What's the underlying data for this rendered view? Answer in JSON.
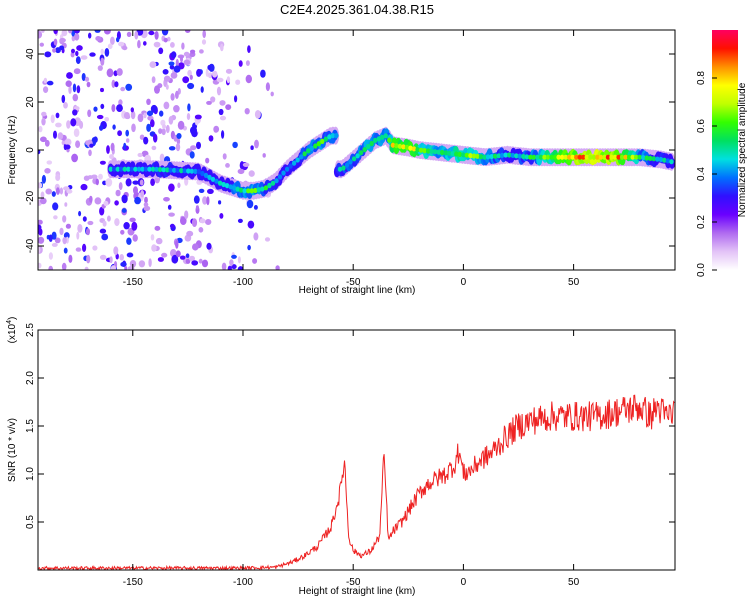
{
  "title": "C2E4.2025.361.04.38.R15",
  "chart_data": [
    {
      "type": "heatmap",
      "title": "C2E4.2025.361.04.38.R15",
      "xlabel": "Height of straight line (km)",
      "ylabel": "Frequency (Hz)",
      "xlim": [
        -193,
        96
      ],
      "ylim": [
        -50,
        50
      ],
      "xticks": [
        -150,
        -100,
        -50,
        0,
        50
      ],
      "yticks": [
        -40,
        -20,
        0,
        20,
        40
      ],
      "colorbar": {
        "label": "Normalized spectral amplitude",
        "range": [
          0.0,
          1.0
        ],
        "ticks": [
          0.0,
          0.2,
          0.4,
          0.6,
          0.8
        ],
        "colors": [
          "#ffffff",
          "#e3c3f7",
          "#b06bf0",
          "#6a00ff",
          "#3010ff",
          "#0070ff",
          "#00e0e0",
          "#00e060",
          "#33ff00",
          "#c0ff00",
          "#ffff00",
          "#ff9000",
          "#ff1000",
          "#ff0060"
        ]
      },
      "ridge": {
        "x": [
          -160,
          -140,
          -120,
          -110,
          -100,
          -95,
          -90,
          -85,
          -80,
          -75,
          -70,
          -65,
          -60,
          -55,
          -50,
          -45,
          -40,
          -35,
          -32,
          -25,
          -20,
          -10,
          0,
          10,
          20,
          30,
          40,
          50,
          60,
          70,
          80,
          90,
          95
        ],
        "y": [
          -8,
          -8,
          -9,
          -14,
          -17,
          -17,
          -16,
          -13,
          -8,
          -4,
          0,
          3,
          6,
          -8,
          -4,
          0,
          4,
          6,
          2,
          1,
          0,
          -1,
          -2,
          -3,
          -2,
          -3,
          -3,
          -3,
          -3,
          -3,
          -3,
          -4,
          -5
        ],
        "amplitude": [
          0.45,
          0.5,
          0.45,
          0.45,
          0.6,
          0.6,
          0.55,
          0.5,
          0.45,
          0.5,
          0.55,
          0.6,
          0.55,
          0.5,
          0.55,
          0.6,
          0.6,
          0.55,
          0.75,
          0.8,
          0.7,
          0.6,
          0.7,
          0.6,
          0.5,
          0.55,
          0.7,
          0.85,
          0.9,
          0.85,
          0.6,
          0.5,
          0.45
        ]
      },
      "noise_region_x": [
        -193,
        -80
      ]
    },
    {
      "type": "line",
      "xlabel": "Height of straight line (km)",
      "ylabel": "SNR (10 * v/v)",
      "scale_label": "(x10",
      "scale_exponent": "4",
      "scale_suffix": ")",
      "xlim": [
        -193,
        96
      ],
      "ylim": [
        0,
        2.5
      ],
      "xticks": [
        -150,
        -100,
        -50,
        0,
        50
      ],
      "yticks": [
        0.5,
        1.0,
        1.5,
        2.0,
        2.5
      ],
      "series": [
        {
          "name": "SNR",
          "color": "#ee2222",
          "x": [
            -193,
            -150,
            -100,
            -85,
            -78,
            -72,
            -66,
            -60,
            -56,
            -54,
            -52,
            -50,
            -46,
            -42,
            -38,
            -36,
            -34,
            -32,
            -28,
            -24,
            -20,
            -16,
            -12,
            -8,
            -4,
            -2,
            0,
            4,
            8,
            12,
            16,
            20,
            25,
            30,
            40,
            50,
            60,
            70,
            80,
            85,
            88,
            92,
            96
          ],
          "y": [
            0.02,
            0.02,
            0.02,
            0.03,
            0.08,
            0.15,
            0.25,
            0.45,
            0.8,
            1.15,
            0.35,
            0.2,
            0.15,
            0.2,
            0.35,
            1.2,
            0.3,
            0.4,
            0.5,
            0.65,
            0.8,
            0.9,
            0.95,
            1.0,
            1.1,
            1.25,
            1.0,
            1.05,
            1.15,
            1.2,
            1.3,
            1.4,
            1.5,
            1.55,
            1.6,
            1.6,
            1.6,
            1.65,
            1.7,
            1.6,
            1.7,
            1.6,
            1.65
          ]
        }
      ]
    }
  ]
}
